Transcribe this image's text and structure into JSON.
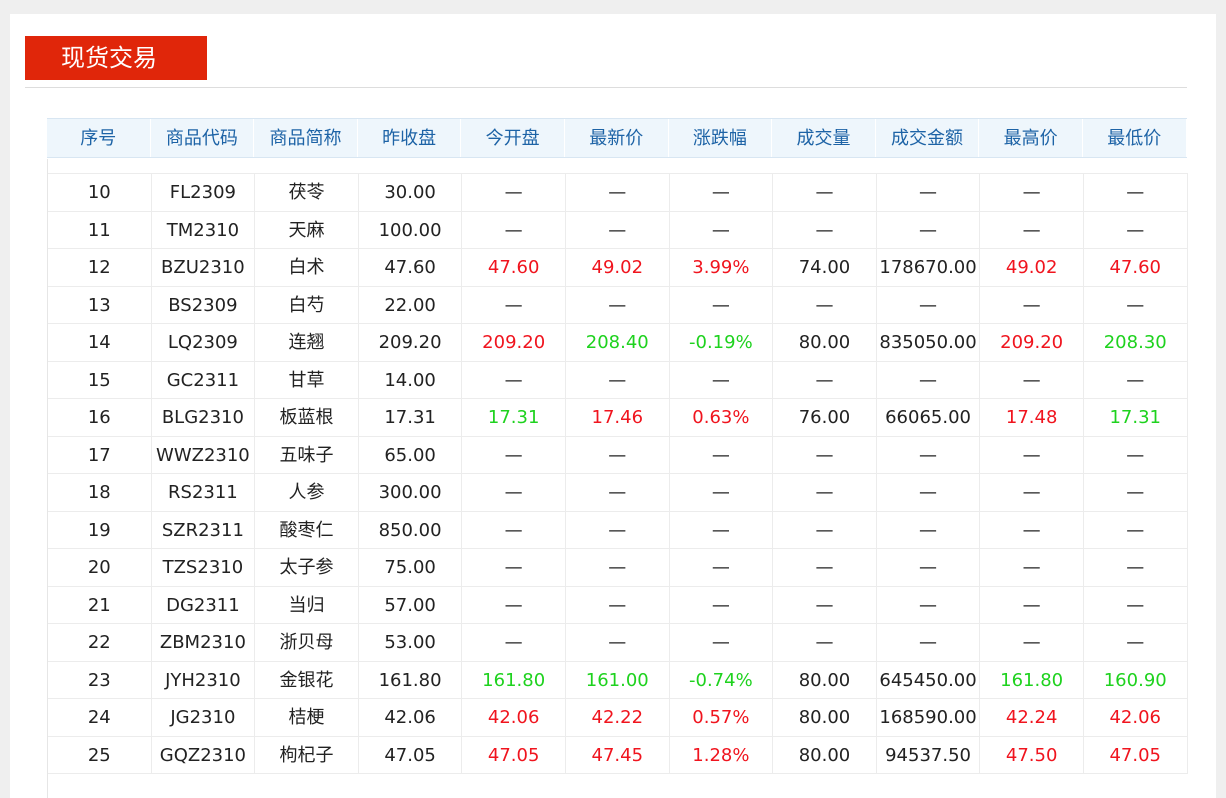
{
  "header": {
    "title": "现货交易"
  },
  "table": {
    "columns": [
      "序号",
      "商品代码",
      "商品简称",
      "昨收盘",
      "今开盘",
      "最新价",
      "涨跌幅",
      "成交量",
      "成交金额",
      "最高价",
      "最低价"
    ],
    "rows": [
      [
        "10",
        "FL2309",
        "茯苓",
        "30.00",
        "—",
        "—",
        "—",
        "—",
        "—",
        "—",
        "—"
      ],
      [
        "11",
        "TM2310",
        "天麻",
        "100.00",
        "—",
        "—",
        "—",
        "—",
        "—",
        "—",
        "—"
      ],
      [
        "12",
        "BZU2310",
        "白术",
        "47.60",
        {
          "text": "47.60",
          "color": "#f0141e"
        },
        {
          "text": "49.02",
          "color": "#f0141e"
        },
        {
          "text": "3.99%",
          "color": "#f0141e"
        },
        "74.00",
        "178670.00",
        {
          "text": "49.02",
          "color": "#f0141e"
        },
        {
          "text": "47.60",
          "color": "#f0141e"
        }
      ],
      [
        "13",
        "BS2309",
        "白芍",
        "22.00",
        "—",
        "—",
        "—",
        "—",
        "—",
        "—",
        "—"
      ],
      [
        "14",
        "LQ2309",
        "连翘",
        "209.20",
        {
          "text": "209.20",
          "color": "#f0141e"
        },
        {
          "text": "208.40",
          "color": "#1ed21e"
        },
        {
          "text": "-0.19%",
          "color": "#1ed21e"
        },
        "80.00",
        "835050.00",
        {
          "text": "209.20",
          "color": "#f0141e"
        },
        {
          "text": "208.30",
          "color": "#1ed21e"
        }
      ],
      [
        "15",
        "GC2311",
        "甘草",
        "14.00",
        "—",
        "—",
        "—",
        "—",
        "—",
        "—",
        "—"
      ],
      [
        "16",
        "BLG2310",
        "板蓝根",
        "17.31",
        {
          "text": "17.31",
          "color": "#1ed21e"
        },
        {
          "text": "17.46",
          "color": "#f0141e"
        },
        {
          "text": "0.63%",
          "color": "#f0141e"
        },
        "76.00",
        "66065.00",
        {
          "text": "17.48",
          "color": "#f0141e"
        },
        {
          "text": "17.31",
          "color": "#1ed21e"
        }
      ],
      [
        "17",
        "WWZ2310",
        "五味子",
        "65.00",
        "—",
        "—",
        "—",
        "—",
        "—",
        "—",
        "—"
      ],
      [
        "18",
        "RS2311",
        "人参",
        "300.00",
        "—",
        "—",
        "—",
        "—",
        "—",
        "—",
        "—"
      ],
      [
        "19",
        "SZR2311",
        "酸枣仁",
        "850.00",
        "—",
        "—",
        "—",
        "—",
        "—",
        "—",
        "—"
      ],
      [
        "20",
        "TZS2310",
        "太子参",
        "75.00",
        "—",
        "—",
        "—",
        "—",
        "—",
        "—",
        "—"
      ],
      [
        "21",
        "DG2311",
        "当归",
        "57.00",
        "—",
        "—",
        "—",
        "—",
        "—",
        "—",
        "—"
      ],
      [
        "22",
        "ZBM2310",
        "浙贝母",
        "53.00",
        "—",
        "—",
        "—",
        "—",
        "—",
        "—",
        "—"
      ],
      [
        "23",
        "JYH2310",
        "金银花",
        "161.80",
        {
          "text": "161.80",
          "color": "#1ed21e"
        },
        {
          "text": "161.00",
          "color": "#1ed21e"
        },
        {
          "text": "-0.74%",
          "color": "#1ed21e"
        },
        "80.00",
        "645450.00",
        {
          "text": "161.80",
          "color": "#1ed21e"
        },
        {
          "text": "160.90",
          "color": "#1ed21e"
        }
      ],
      [
        "24",
        "JG2310",
        "桔梗",
        "42.06",
        {
          "text": "42.06",
          "color": "#f0141e"
        },
        {
          "text": "42.22",
          "color": "#f0141e"
        },
        {
          "text": "0.57%",
          "color": "#f0141e"
        },
        "80.00",
        "168590.00",
        {
          "text": "42.24",
          "color": "#f0141e"
        },
        {
          "text": "42.06",
          "color": "#f0141e"
        }
      ],
      [
        "25",
        "GQZ2310",
        "枸杞子",
        "47.05",
        {
          "text": "47.05",
          "color": "#f0141e"
        },
        {
          "text": "47.45",
          "color": "#f0141e"
        },
        {
          "text": "1.28%",
          "color": "#f0141e"
        },
        "80.00",
        "94537.50",
        {
          "text": "47.50",
          "color": "#f0141e"
        },
        {
          "text": "47.05",
          "color": "#f0141e"
        }
      ]
    ]
  }
}
